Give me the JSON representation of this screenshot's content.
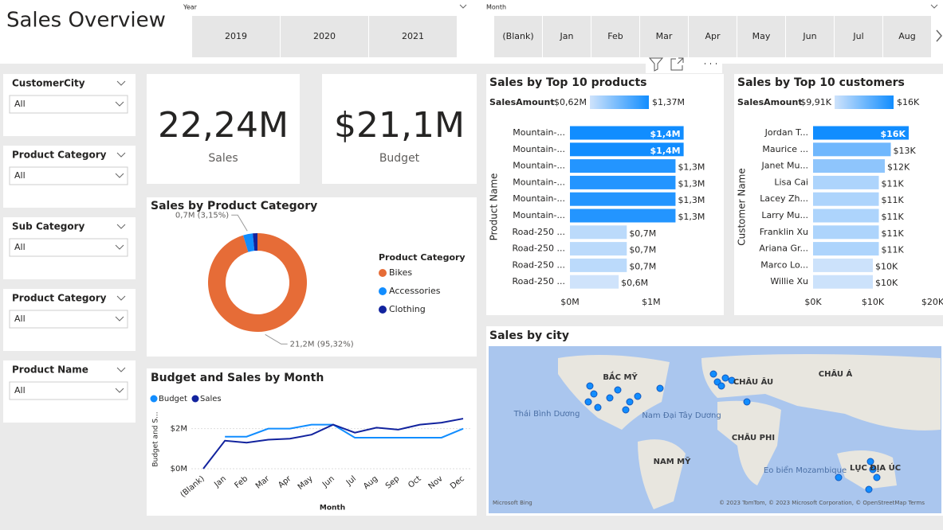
{
  "header": {
    "title": "Sales Overview"
  },
  "year_slicer": {
    "label": "Year",
    "options": [
      "2019",
      "2020",
      "2021"
    ]
  },
  "month_slicer": {
    "label": "Month",
    "options": [
      "(Blank)",
      "Jan",
      "Feb",
      "Mar",
      "Apr",
      "May",
      "Jun",
      "Jul",
      "Aug"
    ]
  },
  "filters": [
    {
      "label": "CustomerCity",
      "value": "All"
    },
    {
      "label": "Product Category",
      "value": "All"
    },
    {
      "label": "Sub Category",
      "value": "All"
    },
    {
      "label": "Product Category",
      "value": "All"
    },
    {
      "label": "Product Name",
      "value": "All"
    }
  ],
  "cards": [
    {
      "value": "22,24M",
      "label": "Sales"
    },
    {
      "value": "$21,1M",
      "label": "Budget"
    }
  ],
  "category_chart": {
    "type": "pie",
    "title": "Sales by Product Category",
    "legend_title": "Product Category",
    "categories": [
      "Bikes",
      "Accessories",
      "Clothing"
    ],
    "values": [
      95.32,
      3.15,
      1.53
    ],
    "value_labels": [
      "21,2M (95,32%)",
      "0,7M (3,15%)",
      null
    ],
    "colors": [
      "#e66c37",
      "#118dff",
      "#12239e"
    ]
  },
  "products_chart": {
    "type": "bar",
    "title": "Sales by Top 10 products",
    "legend_title": "SalesAmount",
    "color_range": [
      {
        "value": 0.62,
        "label": "$0,62M"
      },
      {
        "value": 1.37,
        "label": "$1,37M"
      }
    ],
    "colors": [
      "#cfe3fb",
      "#118dff"
    ],
    "y_label": "Product Name",
    "categories": [
      "Mountain-...",
      "Mountain-...",
      "Mountain-...",
      "Mountain-...",
      "Mountain-...",
      "Mountain-...",
      "Road-250 ...",
      "Road-250 ...",
      "Road-250 ...",
      "Road-250 ..."
    ],
    "values": [
      1.4,
      1.4,
      1.3,
      1.3,
      1.3,
      1.3,
      0.7,
      0.7,
      0.7,
      0.6
    ],
    "value_labels": [
      "$1,4M",
      "$1,4M",
      "$1,3M",
      "$1,3M",
      "$1,3M",
      "$1,3M",
      "$0,7M",
      "$0,7M",
      "$0,7M",
      "$0,6M"
    ],
    "xlim": [
      0,
      1.6
    ],
    "xticks": [
      {
        "value": 0,
        "label": "$0M"
      },
      {
        "value": 1,
        "label": "$1M"
      }
    ]
  },
  "customers_chart": {
    "type": "bar",
    "title": "Sales by Top 10 customers",
    "legend_title": "SalesAmount",
    "color_range": [
      {
        "value": 9.91,
        "label": "$9,91K"
      },
      {
        "value": 16,
        "label": "$16K"
      }
    ],
    "colors": [
      "#cfe3fb",
      "#118dff"
    ],
    "y_label": "Customer Name",
    "categories": [
      "Jordan T...",
      "Maurice ...",
      "Janet Mu...",
      "Lisa Cai",
      "Lacey Zh...",
      "Larry Mu...",
      "Franklin Xu",
      "Ariana Gr...",
      "Marco Lo...",
      "Willie Xu"
    ],
    "values": [
      16,
      13,
      12,
      11,
      11,
      11,
      11,
      11,
      10,
      10
    ],
    "value_labels": [
      "$16K",
      "$13K",
      "$12K",
      "$11K",
      "$11K",
      "$11K",
      "$11K",
      "$11K",
      "$10K",
      "$10K"
    ],
    "xlim": [
      0,
      20
    ],
    "xticks": [
      {
        "value": 0,
        "label": "$0K"
      },
      {
        "value": 10,
        "label": "$10K"
      },
      {
        "value": 20,
        "label": "$20K"
      }
    ]
  },
  "month_chart": {
    "type": "line",
    "title": "Budget and Sales by Month",
    "y_label": "Budget and S...",
    "x_label": "Month",
    "categories": [
      "(Blank)",
      "Jan",
      "Feb",
      "Mar",
      "Apr",
      "May",
      "Jun",
      "Jul",
      "Aug",
      "Sep",
      "Oct",
      "Nov",
      "Dec"
    ],
    "series": [
      {
        "name": "Budget",
        "color": "#118dff",
        "values": [
          null,
          1.6,
          1.6,
          2.0,
          2.0,
          2.2,
          2.2,
          1.55,
          1.55,
          1.55,
          1.55,
          1.55,
          2.0
        ]
      },
      {
        "name": "Sales",
        "color": "#12239e",
        "values": [
          0,
          1.4,
          1.3,
          1.45,
          1.5,
          1.7,
          2.2,
          1.8,
          2.05,
          1.95,
          2.2,
          2.3,
          2.5
        ]
      }
    ],
    "ylim": [
      0,
      2.9
    ],
    "yticks": [
      {
        "value": 0,
        "label": "$0M"
      },
      {
        "value": 2,
        "label": "$2M"
      }
    ]
  },
  "map": {
    "title": "Sales by city",
    "labels": [
      "BẮC MỸ",
      "CHÂU ÂU",
      "CHÂU Á",
      "Thái Bình Dương",
      "Nam Đại Tây Dương",
      "CHÂU PHI",
      "NAM MỸ",
      "Eo biển Mozambique",
      "LỤC ĐỊA ÚC"
    ],
    "logo": "Microsoft Bing",
    "attribution": "© 2023 TomTom, © 2023 Microsoft Corporation, © OpenStreetMap  Terms"
  }
}
